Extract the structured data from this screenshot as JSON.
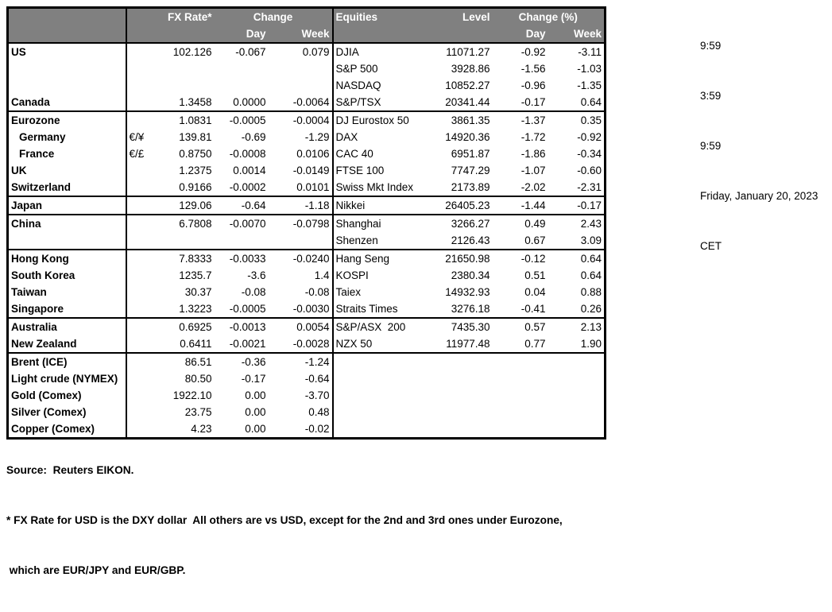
{
  "colors": {
    "header_bg": "#808080",
    "header_text": "#ffffff",
    "border": "#000000",
    "text": "#000000",
    "background": "#ffffff"
  },
  "header": {
    "fx_rate": "FX Rate*",
    "change": "Change",
    "fx_day": "Day",
    "fx_week": "Week",
    "equities": "Equities",
    "level": "Level",
    "change_pct": "Change (%)",
    "eq_day": "Day",
    "eq_week": "Week"
  },
  "info": {
    "lines": [
      "9:59",
      "3:59",
      "9:59",
      "Friday, January 20, 2023",
      "CET"
    ]
  },
  "rows": [
    {
      "country": "US",
      "symbol": "",
      "fx_rate": "102.126",
      "fx_day": "-0.067",
      "fx_week": "0.079",
      "eq_name": "DJIA",
      "eq_level": "11071.27",
      "eq_day": "-0.92",
      "eq_week": "-3.11"
    },
    {
      "country": "",
      "symbol": "",
      "fx_rate": "",
      "fx_day": "",
      "fx_week": "",
      "eq_name": "S&P 500",
      "eq_level": "3928.86",
      "eq_day": "-1.56",
      "eq_week": "-1.03"
    },
    {
      "country": "",
      "symbol": "",
      "fx_rate": "",
      "fx_day": "",
      "fx_week": "",
      "eq_name": "NASDAQ",
      "eq_level": "10852.27",
      "eq_day": "-0.96",
      "eq_week": "-1.35"
    },
    {
      "country": "Canada",
      "symbol": "",
      "fx_rate": "1.3458",
      "fx_day": "0.0000",
      "fx_week": "-0.0064",
      "eq_name": "S&P/TSX",
      "eq_level": "20341.44",
      "eq_day": "-0.17",
      "eq_week": "0.64"
    },
    {
      "sep": true,
      "country": "Eurozone",
      "symbol": "",
      "fx_rate": "1.0831",
      "fx_day": "-0.0005",
      "fx_week": "-0.0004",
      "eq_name": "DJ Eurostox 50",
      "eq_level": "3861.35",
      "eq_day": "-1.37",
      "eq_week": "0.35"
    },
    {
      "indent": true,
      "country": "Germany",
      "symbol": "€/¥",
      "fx_rate": "139.81",
      "fx_day": "-0.69",
      "fx_week": "-1.29",
      "eq_name": "DAX",
      "eq_level": "14920.36",
      "eq_day": "-1.72",
      "eq_week": "-0.92"
    },
    {
      "indent": true,
      "country": "France",
      "symbol": "€/£",
      "fx_rate": "0.8750",
      "fx_day": "-0.0008",
      "fx_week": "0.0106",
      "eq_name": "CAC 40",
      "eq_level": "6951.87",
      "eq_day": "-1.86",
      "eq_week": "-0.34"
    },
    {
      "country": "UK",
      "symbol": "",
      "fx_rate": "1.2375",
      "fx_day": "0.0014",
      "fx_week": "-0.0149",
      "eq_name": "FTSE 100",
      "eq_level": "7747.29",
      "eq_day": "-1.07",
      "eq_week": "-0.60"
    },
    {
      "country": "Switzerland",
      "symbol": "",
      "fx_rate": "0.9166",
      "fx_day": "-0.0002",
      "fx_week": "0.0101",
      "eq_name": "Swiss Mkt Index",
      "eq_level": "2173.89",
      "eq_day": "-2.02",
      "eq_week": "-2.31"
    },
    {
      "sep": true,
      "country": "Japan",
      "symbol": "",
      "fx_rate": "129.06",
      "fx_day": "-0.64",
      "fx_week": "-1.18",
      "eq_name": "Nikkei",
      "eq_level": "26405.23",
      "eq_day": "-1.44",
      "eq_week": "-0.17"
    },
    {
      "sep": true,
      "country": "China",
      "symbol": "",
      "fx_rate": "6.7808",
      "fx_day": "-0.0070",
      "fx_week": "-0.0798",
      "eq_name": "Shanghai",
      "eq_level": "3266.27",
      "eq_day": "0.49",
      "eq_week": "2.43"
    },
    {
      "country": "",
      "symbol": "",
      "fx_rate": "",
      "fx_day": "",
      "fx_week": "",
      "eq_name": "Shenzen",
      "eq_level": "2126.43",
      "eq_day": "0.67",
      "eq_week": "3.09"
    },
    {
      "sep": true,
      "country": "Hong Kong",
      "symbol": "",
      "fx_rate": "7.8333",
      "fx_day": "-0.0033",
      "fx_week": "-0.0240",
      "eq_name": "Hang Seng",
      "eq_level": "21650.98",
      "eq_day": "-0.12",
      "eq_week": "0.64"
    },
    {
      "country": "South Korea",
      "symbol": "",
      "fx_rate": "1235.7",
      "fx_day": "-3.6",
      "fx_week": "1.4",
      "eq_name": "KOSPI",
      "eq_level": "2380.34",
      "eq_day": "0.51",
      "eq_week": "0.64"
    },
    {
      "country": "Taiwan",
      "symbol": "",
      "fx_rate": "30.37",
      "fx_day": "-0.08",
      "fx_week": "-0.08",
      "eq_name": "Taiex",
      "eq_level": "14932.93",
      "eq_day": "0.04",
      "eq_week": "0.88"
    },
    {
      "country": "Singapore",
      "symbol": "",
      "fx_rate": "1.3223",
      "fx_day": "-0.0005",
      "fx_week": "-0.0030",
      "eq_name": "Straits Times",
      "eq_level": "3276.18",
      "eq_day": "-0.41",
      "eq_week": "0.26"
    },
    {
      "sep": true,
      "country": "Australia",
      "symbol": "",
      "fx_rate": "0.6925",
      "fx_day": "-0.0013",
      "fx_week": "0.0054",
      "eq_name": "S&P/ASX  200",
      "eq_level": "7435.30",
      "eq_day": "0.57",
      "eq_week": "2.13"
    },
    {
      "country": "New Zealand",
      "symbol": "",
      "fx_rate": "0.6411",
      "fx_day": "-0.0021",
      "fx_week": "-0.0028",
      "eq_name": "NZX 50",
      "eq_level": "11977.48",
      "eq_day": "0.77",
      "eq_week": "1.90"
    },
    {
      "sep": true,
      "country": "Brent (ICE)",
      "symbol": "",
      "fx_rate": "86.51",
      "fx_day": "-0.36",
      "fx_week": "-1.24",
      "eq_name": "",
      "eq_level": "",
      "eq_day": "",
      "eq_week": ""
    },
    {
      "country": "Light crude (NYMEX)",
      "symbol": "",
      "fx_rate": "80.50",
      "fx_day": "-0.17",
      "fx_week": "-0.64",
      "eq_name": "",
      "eq_level": "",
      "eq_day": "",
      "eq_week": ""
    },
    {
      "country": "Gold (Comex)",
      "symbol": "",
      "fx_rate": "1922.10",
      "fx_day": "0.00",
      "fx_week": "-3.70",
      "eq_name": "",
      "eq_level": "",
      "eq_day": "",
      "eq_week": ""
    },
    {
      "country": "Silver (Comex)",
      "symbol": "",
      "fx_rate": "23.75",
      "fx_day": "0.00",
      "fx_week": "0.48",
      "eq_name": "",
      "eq_level": "",
      "eq_day": "",
      "eq_week": ""
    },
    {
      "country": "Copper (Comex)",
      "symbol": "",
      "fx_rate": "4.23",
      "fx_day": "0.00",
      "fx_week": "-0.02",
      "eq_name": "",
      "eq_level": "",
      "eq_day": "",
      "eq_week": ""
    }
  ],
  "footer": {
    "lines": [
      "Source:  Reuters EIKON.",
      "* FX Rate for USD is the DXY dollar  All others are vs USD, except for the 2nd and 3rd ones under Eurozone,",
      " which are EUR/JPY and EUR/GBP."
    ]
  }
}
